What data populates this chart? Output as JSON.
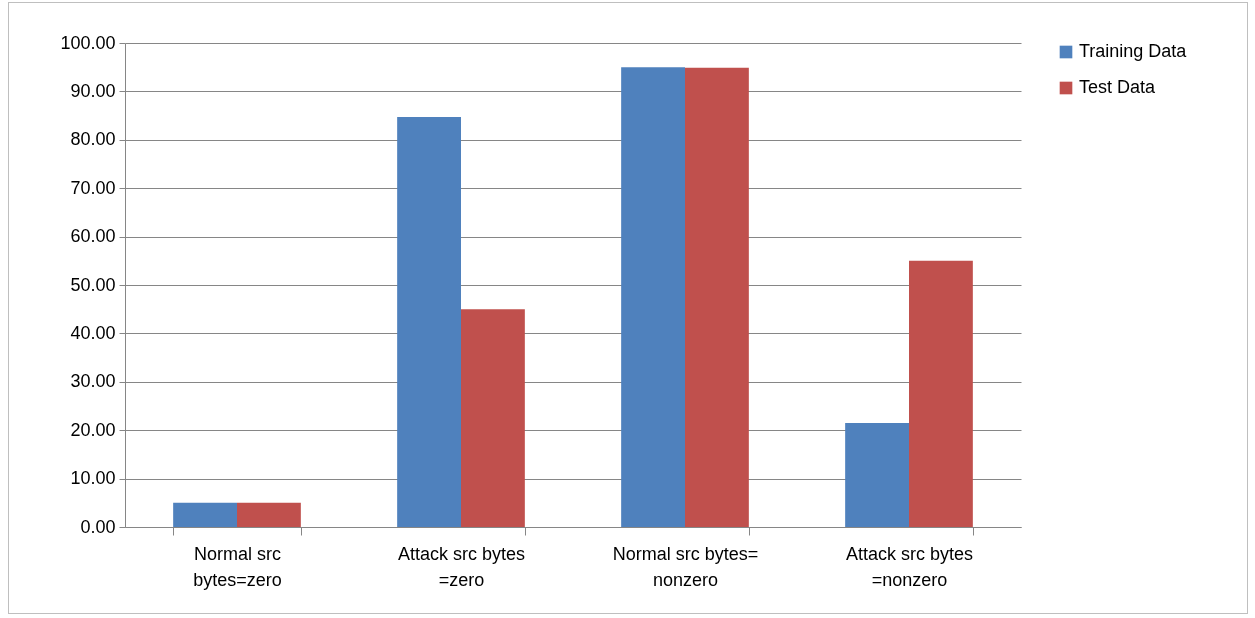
{
  "chart_data": {
    "type": "bar",
    "categories": [
      "Normal src bytes=zero",
      "Attack src bytes =zero",
      "Normal src bytes= nonzero",
      "Attack src bytes =nonzero"
    ],
    "series": [
      {
        "name": "Training Data",
        "color": "#4f81bd",
        "values": [
          5.0,
          84.7,
          95.0,
          21.5
        ]
      },
      {
        "name": "Test Data",
        "color": "#c0504d",
        "values": [
          5.0,
          45.0,
          94.9,
          55.0
        ]
      }
    ],
    "ylim": [
      0,
      100
    ],
    "yticks": [
      {
        "value": 0,
        "label": "0.00"
      },
      {
        "value": 10,
        "label": "10.00"
      },
      {
        "value": 20,
        "label": "20.00"
      },
      {
        "value": 30,
        "label": "30.00"
      },
      {
        "value": 40,
        "label": "40.00"
      },
      {
        "value": 50,
        "label": "50.00"
      },
      {
        "value": 60,
        "label": "60.00"
      },
      {
        "value": 70,
        "label": "70.00"
      },
      {
        "value": 80,
        "label": "80.00"
      },
      {
        "value": 90,
        "label": "90.00"
      },
      {
        "value": 100,
        "label": "100.00"
      }
    ],
    "grid": "y",
    "legend": "right"
  }
}
